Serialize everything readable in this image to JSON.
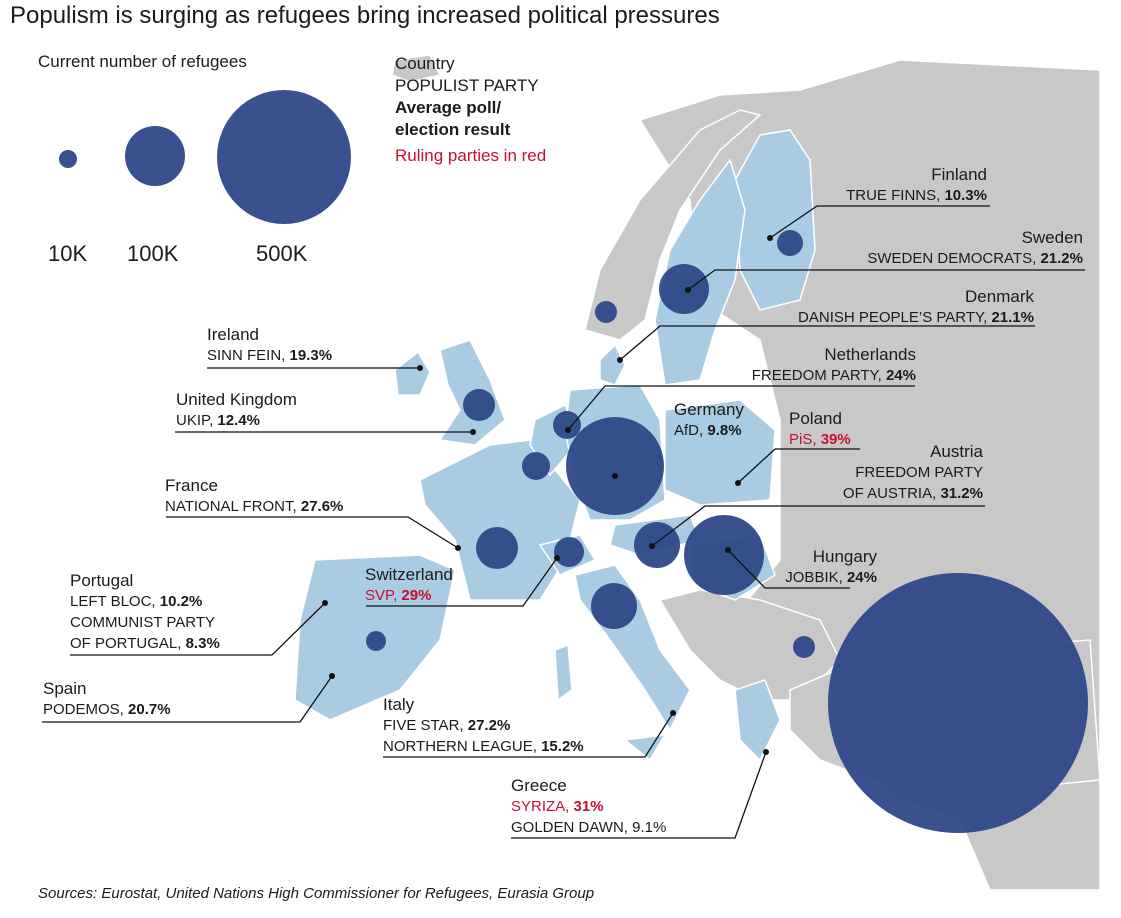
{
  "title": "Populism is surging as refugees bring increased political pressures",
  "legend": {
    "size_heading": "Current number of refugees",
    "sizes": [
      {
        "label": "10K",
        "value": 10000
      },
      {
        "label": "100K",
        "value": 100000
      },
      {
        "label": "500K",
        "value": 500000
      }
    ],
    "key_country": "Country",
    "key_party": "POPULIST PARTY",
    "key_result_1": "Average poll/",
    "key_result_2": "election result",
    "key_ruling": "Ruling parties in red"
  },
  "colors": {
    "highlight_country": "#a9cce2",
    "other_country": "#c8c8c8",
    "bubble": "#2e4888",
    "ruling_red": "#c8102e"
  },
  "countries": {
    "finland": {
      "name": "Finland",
      "party": "TRUE FINNS,",
      "result": "10.3%",
      "ruling": false
    },
    "sweden": {
      "name": "Sweden",
      "party": "SWEDEN DEMOCRATS,",
      "result": "21.2%",
      "ruling": false
    },
    "denmark": {
      "name": "Denmark",
      "party": "DANISH PEOPLE’S PARTY,",
      "result": "21.1%",
      "ruling": false
    },
    "netherlands": {
      "name": "Netherlands",
      "party": "FREEDOM PARTY,",
      "result": "24%",
      "ruling": false
    },
    "germany": {
      "name": "Germany",
      "party": "AfD,",
      "result": "9.8%",
      "ruling": false
    },
    "poland": {
      "name": "Poland",
      "party": "PiS,",
      "result": "39%",
      "ruling": true
    },
    "austria": {
      "name": "Austria",
      "party_line1": "FREEDOM PARTY",
      "party_line2": "OF AUSTRIA,",
      "result": "31.2%",
      "ruling": false
    },
    "hungary": {
      "name": "Hungary",
      "party": "JOBBIK,",
      "result": "24%",
      "ruling": false
    },
    "ireland": {
      "name": "Ireland",
      "party": "SINN FEIN,",
      "result": "19.3%",
      "ruling": false
    },
    "uk": {
      "name": "United Kingdom",
      "party": "UKIP,",
      "result": "12.4%",
      "ruling": false
    },
    "france": {
      "name": "France",
      "party": "NATIONAL FRONT,",
      "result": "27.6%",
      "ruling": false
    },
    "switzerland": {
      "name": "Switzerland",
      "party": "SVP,",
      "result": "29%",
      "ruling": true
    },
    "portugal": {
      "name": "Portugal",
      "party1": "LEFT BLOC,",
      "result1": "10.2%",
      "party2_line1": "COMMUNIST PARTY",
      "party2_line2": "OF PORTUGAL,",
      "result2": "8.3%"
    },
    "spain": {
      "name": "Spain",
      "party": "PODEMOS,",
      "result": "20.7%",
      "ruling": false
    },
    "italy": {
      "name": "Italy",
      "party1": "FIVE STAR,",
      "result1": "27.2%",
      "party2": "NORTHERN LEAGUE,",
      "result2": "15.2%"
    },
    "greece": {
      "name": "Greece",
      "party1": "SYRIZA,",
      "result1": "31%",
      "party2": "GOLDEN DAWN,",
      "result2": "9.1%"
    }
  },
  "sources": "Sources: Eurostat, United Nations High Commissioner for Refugees, Eurasia Group"
}
